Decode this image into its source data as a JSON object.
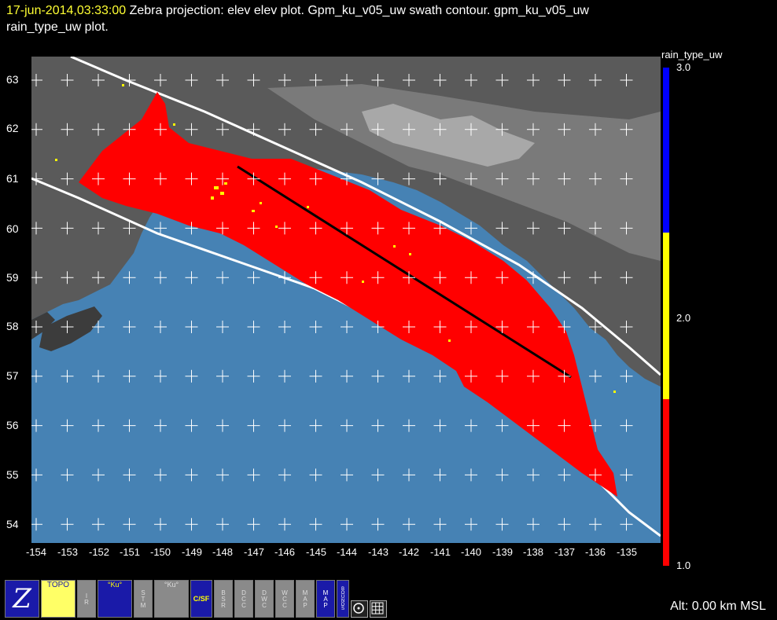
{
  "header": {
    "timestamp": "17-jun-2014,03:33:00",
    "line1_rest": "  Zebra projection: elev elev  plot.  Gpm_ku_v05_uw swath contour.  gpm_ku_v05_uw",
    "line2": "rain_type_uw  plot."
  },
  "map": {
    "ocean_color": "#4682b4",
    "rain_color": "#ff0000",
    "convective_color": "#ffff00",
    "swath_color": "#ffffff",
    "lat_labels": [
      "63",
      "62",
      "61",
      "60",
      "59",
      "58",
      "57",
      "56",
      "55",
      "54"
    ],
    "lon_labels": [
      "-154",
      "-153",
      "-152",
      "-151",
      "-150",
      "-149",
      "-148",
      "-147",
      "-146",
      "-145",
      "-144",
      "-143",
      "-142",
      "-141",
      "-140",
      "-139",
      "-138",
      "-137",
      "-136",
      "-135"
    ]
  },
  "colorbar": {
    "title": "rain_type_uw",
    "labels": {
      "top": "3.0",
      "mid": "2.0",
      "bottom": "1.0"
    },
    "colors": [
      "#0000ff",
      "#ffff00",
      "#ff0000"
    ]
  },
  "status": {
    "altitude": "Alt: 0.00 km MSL"
  },
  "toolbar": {
    "zebra": "Z",
    "topo": "TOPO",
    "ir": "IR",
    "ku": "°Ku°",
    "stm": "STM",
    "ku2": "°Ku°",
    "csf": "C/SF",
    "bsr": "BSR",
    "dcc": "DCC",
    "dwc": "DWC",
    "wcc": "WCC",
    "map": "MAP",
    "map2": "MAP",
    "bounds": "BOUNDS"
  }
}
